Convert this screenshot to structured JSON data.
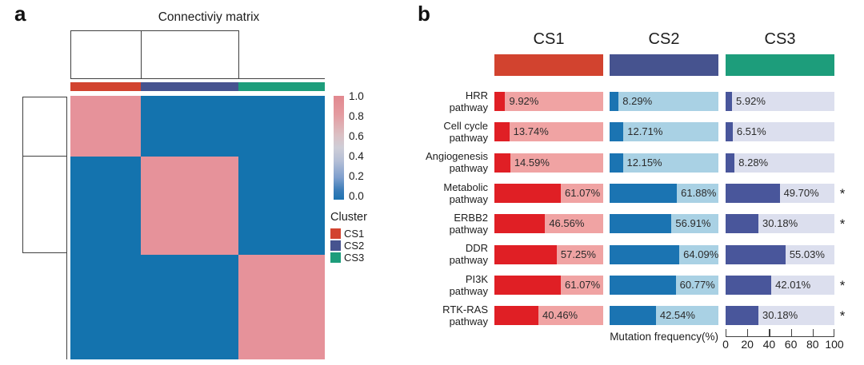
{
  "panels": {
    "a_label": "a",
    "b_label": "b"
  },
  "colors": {
    "cluster_cs1": "#d2432f",
    "cluster_cs2": "#46538f",
    "cluster_cs3": "#1d9d7b",
    "cs1_fill": "#e01f25",
    "cs1_bg": "#f0a3a3",
    "cs2_fill": "#1b74b2",
    "cs2_bg": "#a9d1e4",
    "cs3_fill": "#49569b",
    "cs3_bg": "#dcdfee",
    "heatmap_high": "#e6929a",
    "heatmap_low": "#1473ae",
    "line": "#404040"
  },
  "chart_data": [
    {
      "id": "connectivity-matrix-heatmap",
      "type": "heatmap",
      "title": "Connectiviy matrix",
      "legend_title": "Cluster",
      "clusters": [
        "CS1",
        "CS2",
        "CS3"
      ],
      "cluster_colors": [
        "#d2432f",
        "#46538f",
        "#1d9d7b"
      ],
      "matrix": [
        [
          1,
          0,
          0
        ],
        [
          0,
          1,
          0
        ],
        [
          0,
          0,
          1
        ]
      ],
      "high_value_color": "#e6929a",
      "low_value_color": "#1473ae",
      "col_fractions": [
        0.277,
        0.383,
        0.34
      ],
      "row_fractions": [
        0.23,
        0.373,
        0.397
      ],
      "colorbar_ticks": [
        "1.0",
        "0.8",
        "0.6",
        "0.4",
        "0.2",
        "0.0"
      ],
      "colorbar_range": [
        0,
        1
      ]
    },
    {
      "id": "pathway-mutation-frequency",
      "type": "bar",
      "orientation": "horizontal",
      "categories": [
        "HRR",
        "Cell cycle",
        "Angiogenesis",
        "Metabolic",
        "ERBB2",
        "DDR",
        "PI3K",
        "RTK-RAS"
      ],
      "category_suffix": "pathway",
      "series": [
        {
          "name": "CS1",
          "color": "#d2432f",
          "fill_color": "#e01f25",
          "bg_color": "#f0a3a3",
          "values": [
            9.92,
            13.74,
            14.59,
            61.07,
            46.56,
            57.25,
            61.07,
            40.46
          ]
        },
        {
          "name": "CS2",
          "color": "#46538f",
          "fill_color": "#1b74b2",
          "bg_color": "#a9d1e4",
          "values": [
            8.29,
            12.71,
            12.15,
            61.88,
            56.91,
            64.09,
            60.77,
            42.54
          ]
        },
        {
          "name": "CS3",
          "color": "#1d9d7b",
          "fill_color": "#49569b",
          "bg_color": "#dcdfee",
          "values": [
            5.92,
            6.51,
            8.28,
            49.7,
            30.18,
            55.03,
            42.01,
            30.18
          ]
        }
      ],
      "value_suffix": "%",
      "significance": [
        "",
        "",
        "",
        "*",
        "*",
        "",
        "*",
        "*"
      ],
      "xlabel": "Mutation frequency(%)",
      "xlim": [
        0,
        100
      ],
      "x_ticks": [
        "0",
        "20",
        "40",
        "60",
        "80",
        "100"
      ]
    }
  ]
}
